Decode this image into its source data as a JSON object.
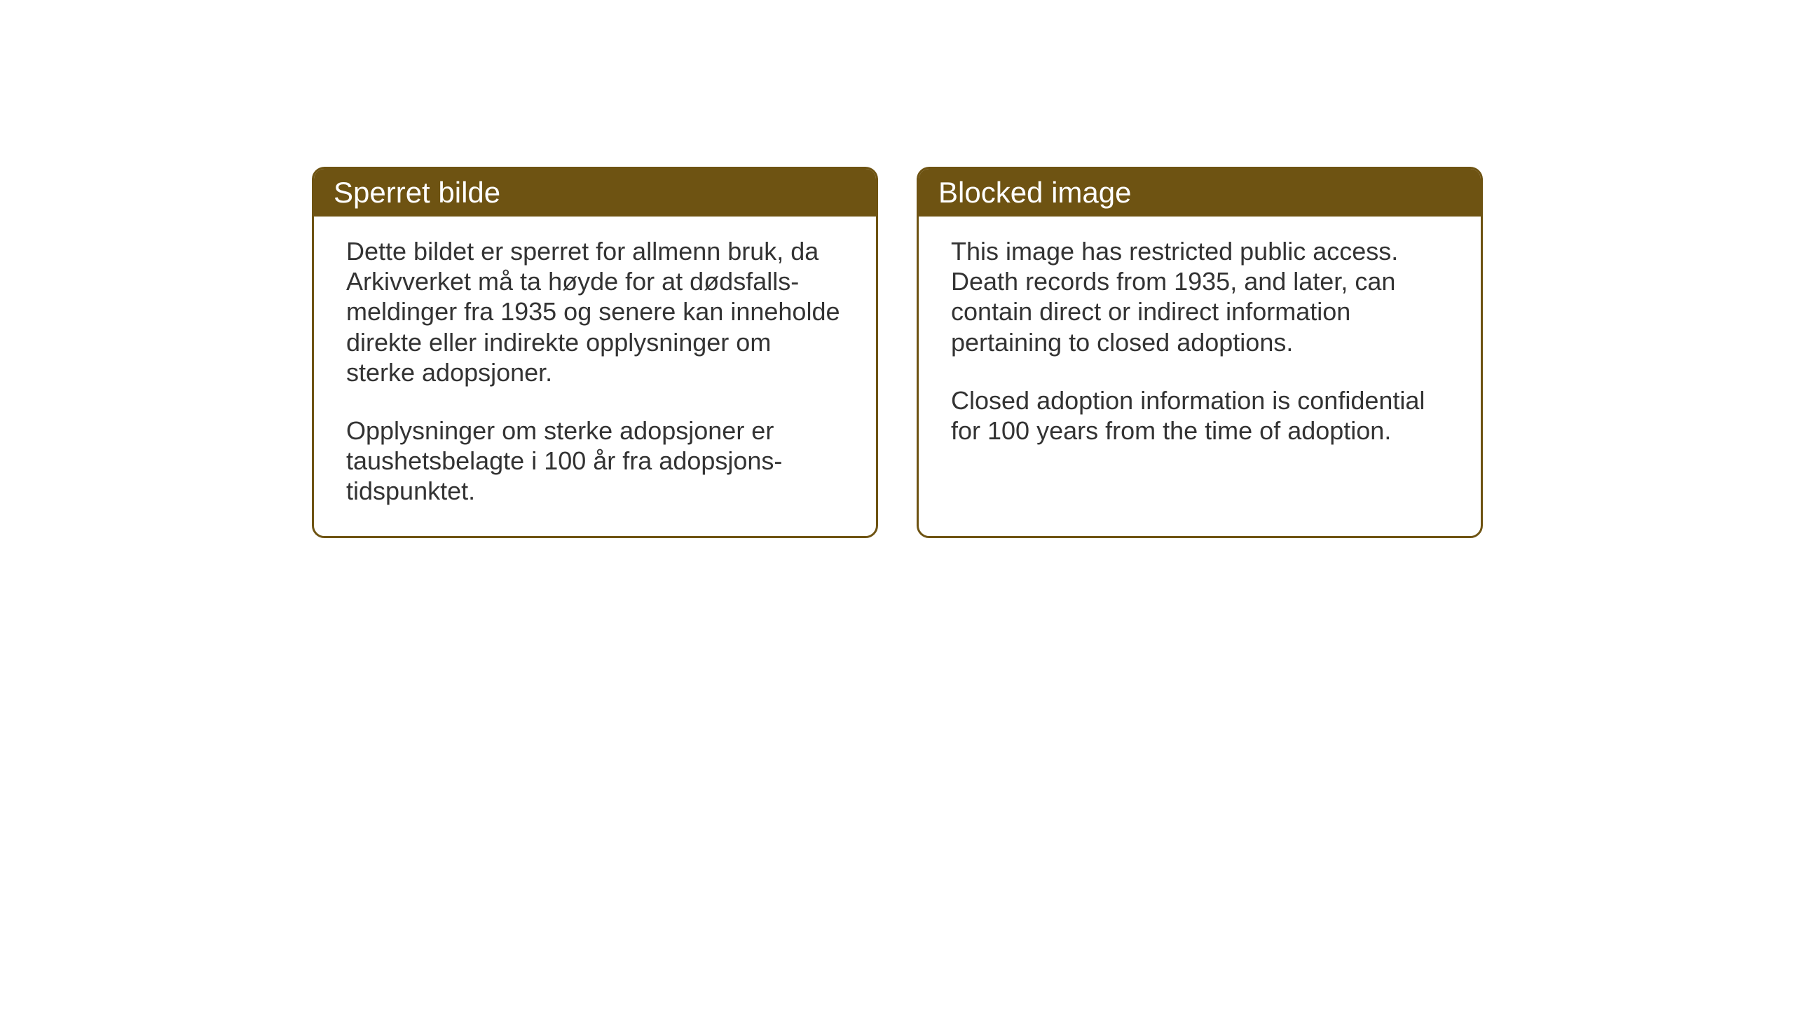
{
  "cards": [
    {
      "title": "Sperret bilde",
      "paragraph1": "Dette bildet er sperret for allmenn bruk, da Arkivverket må ta høyde for at dødsfalls-meldinger fra 1935 og senere kan inneholde direkte eller indirekte opplysninger om sterke adopsjoner.",
      "paragraph2": "Opplysninger om sterke adopsjoner er taushetsbelagte i 100 år fra adopsjons-tidspunktet."
    },
    {
      "title": "Blocked image",
      "paragraph1": "This image has restricted public access. Death records from 1935, and later, can contain direct or indirect information pertaining to closed adoptions.",
      "paragraph2": "Closed adoption information is confidential for 100 years from the time of adoption."
    }
  ],
  "styling": {
    "header_bg_color": "#6e5312",
    "header_text_color": "#ffffff",
    "border_color": "#6e5312",
    "body_text_color": "#333333",
    "background_color": "#ffffff",
    "header_fontsize": 42,
    "body_fontsize": 36,
    "border_radius": 18,
    "border_width": 3
  }
}
